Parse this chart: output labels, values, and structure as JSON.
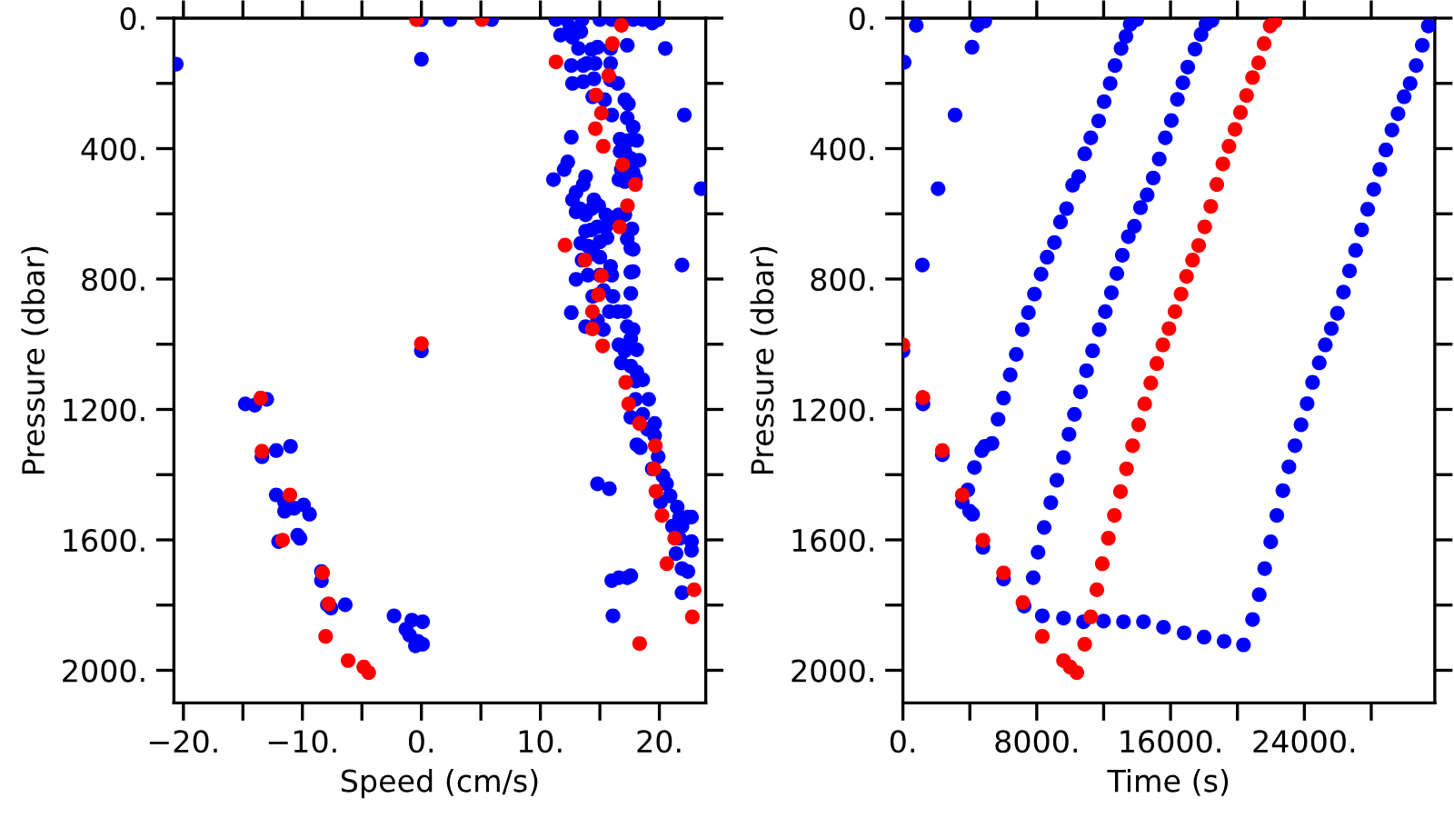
{
  "chart_data": [
    {
      "type": "scatter",
      "xlabel": "Speed (cm/s)",
      "ylabel": "Pressure (dbar)",
      "marker": "circle",
      "grid": false,
      "legend": false,
      "xlim": [
        -20.8,
        23.9
      ],
      "ylim": [
        2100,
        0
      ],
      "xticks": [
        {
          "value": -20,
          "label": "−20."
        },
        {
          "value": -15,
          "label": null
        },
        {
          "value": -10,
          "label": "−10."
        },
        {
          "value": -5,
          "label": null
        },
        {
          "value": 0,
          "label": "0."
        },
        {
          "value": 5,
          "label": null
        },
        {
          "value": 10,
          "label": "10."
        },
        {
          "value": 15,
          "label": null
        },
        {
          "value": 20,
          "label": "20."
        }
      ],
      "yticks": [
        {
          "value": 0,
          "label": "0."
        },
        {
          "value": 200,
          "label": null
        },
        {
          "value": 400,
          "label": "400."
        },
        {
          "value": 600,
          "label": null
        },
        {
          "value": 800,
          "label": "800."
        },
        {
          "value": 1000,
          "label": null
        },
        {
          "value": 1200,
          "label": "1200."
        },
        {
          "value": 1400,
          "label": null
        },
        {
          "value": 1600,
          "label": "1600."
        },
        {
          "value": 1800,
          "label": null
        },
        {
          "value": 2000,
          "label": "2000."
        }
      ],
      "series": [
        {
          "color": "#0000ff",
          "x": [
            0,
            2.4,
            5.9,
            11.3,
            12.2,
            13.5,
            15.0,
            16.0,
            17.8,
            18.6,
            19.4,
            19.9,
            12.5,
            13.4,
            11.7,
            12.7,
            17.3,
            20.5,
            -20.6,
            0,
            12.6,
            13.6,
            14.3,
            14.8,
            13.2,
            13.9,
            14.6,
            15.9,
            15.9,
            12.7,
            13.6,
            14.5,
            15.9,
            16.5,
            14.4,
            15.4,
            17.1,
            17.4,
            16.0,
            17.3,
            17.8,
            17.4,
            16.7,
            18.1,
            17.6,
            16.7,
            17.1,
            18.3,
            17.8,
            16.8,
            16.6,
            17.1,
            18.0,
            22.1,
            23.5,
            12.6,
            11.1,
            12.0,
            12.3,
            13.8,
            13.0,
            13.6,
            14.5,
            13.8,
            12.7,
            13.0,
            13.3,
            14.3,
            14.9,
            15.5,
            16.0,
            16.6,
            17.1,
            17.7,
            17.8,
            15.5,
            14.8,
            14.3,
            13.8,
            13.4,
            14.0,
            15.0,
            15.6,
            17.3,
            13.5,
            14.5,
            15.0,
            17.6,
            15.9,
            21.9,
            13.0,
            14.0,
            15.0,
            16.0,
            17.6,
            15.3,
            16.1,
            17.6,
            17.8,
            14.4,
            12.6,
            13.8,
            14.8,
            15.8,
            16.5,
            17.1,
            17.3,
            17.8,
            17.6,
            15.3,
            16.6,
            17.1,
            18.1,
            16.8,
            17.6,
            18.1,
            18.0,
            18.6,
            19.1,
            18.0,
            17.6,
            18.6,
            19.6,
            19.0,
            18.1,
            18.4,
            19.6,
            19.9,
            19.4,
            20.6,
            20.3,
            20.1,
            20.9,
            21.5,
            22.4,
            21.1,
            21.9,
            21.7,
            22.7,
            22.7,
            21.4,
            21.9,
            22.4,
            21.9,
            14.8,
            15.8,
            16.6,
            17.3,
            17.6,
            16.0,
            16.1,
            22.7,
            21.7,
            0,
            -14.8,
            -14.0,
            -13.0,
            -13.4,
            -12.2,
            -11.0,
            -12.2,
            -11.5,
            -11.5,
            -10.7,
            -9.9,
            -9.4,
            -10.4,
            -10.2,
            -12.0,
            -8.4,
            -8.4,
            -7.9,
            -7.6,
            -6.4,
            -2.3,
            -0.8,
            -1.3,
            -1.0,
            -0.3,
            0.1,
            -0.5,
            0.1
          ],
          "values": [
            4,
            4,
            4,
            4,
            4,
            4,
            4,
            4,
            4,
            4,
            15,
            4,
            28,
            41,
            52,
            59,
            83,
            93,
            141,
            126,
            145,
            145,
            96,
            89,
            93,
            139,
            139,
            139,
            93,
            200,
            195,
            186,
            189,
            200,
            241,
            250,
            250,
            263,
            297,
            306,
            334,
            375,
            371,
            375,
            430,
            408,
            408,
            436,
            473,
            464,
            495,
            501,
            492,
            297,
            523,
            365,
            495,
            464,
            441,
            486,
            534,
            510,
            557,
            603,
            557,
            594,
            584,
            584,
            575,
            603,
            612,
            603,
            603,
            646,
            709,
            640,
            640,
            649,
            653,
            690,
            699,
            686,
            673,
            677,
            742,
            723,
            733,
            705,
            761,
            757,
            801,
            788,
            788,
            788,
            779,
            835,
            853,
            844,
            777,
            853,
            903,
            946,
            927,
            900,
            900,
            900,
            946,
            955,
            983,
            955,
            1002,
            1020,
            1017,
            1057,
            1067,
            1085,
            1113,
            1109,
            1169,
            1169,
            1224,
            1215,
            1243,
            1261,
            1308,
            1317,
            1280,
            1345,
            1382,
            1428,
            1404,
            1484,
            1465,
            1499,
            1530,
            1558,
            1558,
            1595,
            1605,
            1632,
            1642,
            1688,
            1697,
            1762,
            1428,
            1443,
            1716,
            1716,
            1710,
            1725,
            1833,
            1530,
            1530,
            1020,
            1183,
            1187,
            1169,
            1345,
            1326,
            1313,
            1462,
            1484,
            1512,
            1503,
            1493,
            1521,
            1586,
            1595,
            1605,
            1697,
            1725,
            1799,
            1809,
            1799,
            1833,
            1846,
            1874,
            1892,
            1911,
            1920,
            1925,
            1851
          ]
        },
        {
          "color": "#ff0000",
          "x": [
            -0.41,
            5.09,
            16.81,
            16.05,
            11.31,
            15.74,
            14.67,
            15.13,
            14.62,
            15.28,
            16.91,
            17.98,
            17.32,
            16.66,
            12.07,
            13.75,
            15.13,
            14.88,
            14.37,
            14.37,
            15.23,
            17.17,
            17.42,
            18.34,
            19.66,
            19.56,
            19.71,
            20.22,
            21.29,
            20.63,
            22.92,
            22.77,
            18.34,
            -13.5,
            -13.4,
            -11.05,
            -11.67,
            -8.3,
            -7.79,
            -8.05,
            -6.16,
            -4.84,
            -4.43,
            0
          ],
          "values": [
            4,
            4,
            22,
            78,
            134,
            176,
            236,
            291,
            339,
            393,
            449,
            510,
            575,
            640,
            696,
            742,
            790,
            848,
            900,
            953,
            1005,
            1117,
            1183,
            1243,
            1311,
            1382,
            1451,
            1525,
            1595,
            1673,
            1753,
            1836,
            1918,
            1165,
            1328,
            1462,
            1601,
            1701,
            1796,
            1896,
            1970,
            1990,
            2007,
            998
          ]
        }
      ]
    },
    {
      "type": "scatter",
      "xlabel": "Time (s)",
      "ylabel": "Pressure (dbar)",
      "marker": "circle",
      "grid": false,
      "legend": false,
      "xlim": [
        0,
        31800
      ],
      "ylim": [
        2100,
        0
      ],
      "xticks": [
        {
          "value": 0,
          "label": "0."
        },
        {
          "value": 4000,
          "label": null
        },
        {
          "value": 8000,
          "label": "8000."
        },
        {
          "value": 12000,
          "label": null
        },
        {
          "value": 16000,
          "label": "16000."
        },
        {
          "value": 20000,
          "label": null
        },
        {
          "value": 24000,
          "label": "24000."
        },
        {
          "value": 28000,
          "label": null
        }
      ],
      "yticks": [
        {
          "value": 0,
          "label": "0."
        },
        {
          "value": 200,
          "label": null
        },
        {
          "value": 400,
          "label": "400."
        },
        {
          "value": 600,
          "label": null
        },
        {
          "value": 800,
          "label": "800."
        },
        {
          "value": 1000,
          "label": null
        },
        {
          "value": 1200,
          "label": "1200."
        },
        {
          "value": 1400,
          "label": null
        },
        {
          "value": 1600,
          "label": "1600."
        },
        {
          "value": 1800,
          "label": null
        },
        {
          "value": 2000,
          "label": "2000."
        }
      ],
      "series": [
        {
          "color": "#0000ff",
          "x": [
            0,
            1196,
            2355,
            3551,
            3985,
            4166,
            4783,
            6015,
            7247,
            8333,
            9601,
            10797,
            11992,
            13188,
            14383,
            15579,
            16811,
            18007,
            19203,
            20362,
            20905,
            21303,
            21629,
            21991,
            22354,
            22716,
            23078,
            23441,
            23803,
            24165,
            24491,
            24890,
            25252,
            25614,
            25976,
            26339,
            26701,
            27064,
            27426,
            27788,
            28151,
            28513,
            28875,
            29237,
            29600,
            29962,
            30324,
            30686,
            31049,
            31411,
            3877,
            4275,
            4710,
            4891,
            5326,
            5688,
            6015,
            6413,
            6775,
            7137,
            7500,
            7862,
            8260,
            8623,
            9058,
            9420,
            9782,
            10145,
            10507,
            10869,
            11231,
            11702,
            12028,
            12390,
            12680,
            13043,
            13333,
            13586,
            13985,
            7789,
            8079,
            8442,
            8840,
            9203,
            9601,
            9927,
            10253,
            10615,
            10977,
            11340,
            11738,
            12101,
            12463,
            12789,
            13115,
            13477,
            13840,
            14202,
            14600,
            14963,
            15325,
            15687,
            16050,
            16412,
            16738,
            17028,
            17463,
            17825,
            18115,
            18478,
            72,
            797,
            1159,
            2101,
            3116,
            4130,
            4456,
            4891
          ],
          "values": [
            1020,
            1183,
            1339,
            1484,
            1512,
            1521,
            1623,
            1720,
            1803,
            1833,
            1840,
            1851,
            1849,
            1851,
            1851,
            1868,
            1885,
            1898,
            1911,
            1922,
            1844,
            1768,
            1688,
            1606,
            1525,
            1449,
            1376,
            1311,
            1247,
            1182,
            1117,
            1057,
            1002,
            952,
            905,
            840,
            775,
            712,
            649,
            586,
            525,
            464,
            404,
            343,
            293,
            241,
            200,
            145,
            83,
            24,
            1447,
            1378,
            1326,
            1313,
            1304,
            1230,
            1165,
            1094,
            1031,
            955,
            903,
            846,
            785,
            733,
            688,
            625,
            584,
            512,
            486,
            416,
            367,
            315,
            256,
            200,
            145,
            93,
            56,
            19,
            4,
            1716,
            1638,
            1562,
            1486,
            1417,
            1347,
            1276,
            1215,
            1146,
            1081,
            1020,
            955,
            900,
            842,
            783,
            727,
            670,
            638,
            581,
            542,
            490,
            432,
            367,
            314,
            249,
            198,
            150,
            95,
            50,
            19,
            7,
            135,
            22,
            757,
            523,
            297,
            89,
            22,
            9
          ]
        },
        {
          "color": "#ff0000",
          "x": [
            0,
            1196,
            2355,
            3551,
            4783,
            6015,
            7174,
            8333,
            9601,
            10000,
            10398,
            10869,
            11231,
            11594,
            11920,
            12282,
            12644,
            13006,
            13369,
            13731,
            14093,
            14455,
            14818,
            15180,
            15542,
            15904,
            16267,
            16629,
            16956,
            17318,
            17680,
            18043,
            18405,
            18767,
            19129,
            19492,
            19854,
            20180,
            20543,
            20905,
            21267,
            21593,
            21955,
            22245
          ],
          "values": [
            1002,
            1163,
            1326,
            1462,
            1601,
            1701,
            1792,
            1896,
            1970,
            1990,
            2007,
            1920,
            1836,
            1753,
            1673,
            1595,
            1525,
            1452,
            1382,
            1311,
            1247,
            1183,
            1119,
            1059,
            1002,
            952,
            900,
            846,
            792,
            742,
            697,
            640,
            577,
            510,
            447,
            393,
            341,
            289,
            237,
            182,
            137,
            78,
            24,
            9
          ]
        }
      ]
    }
  ]
}
